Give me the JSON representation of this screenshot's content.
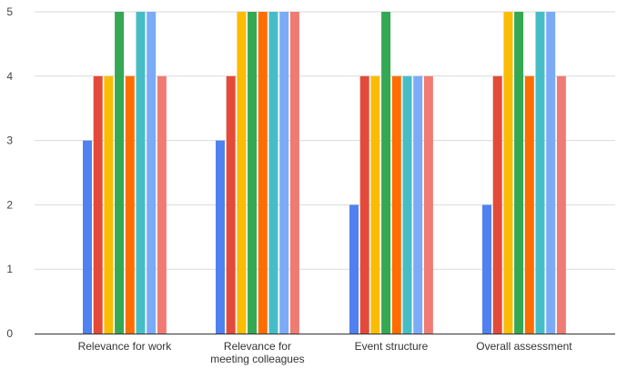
{
  "chart_data": {
    "type": "bar",
    "categories": [
      "Relevance for work",
      "Relevance for\nmeeting colleagues",
      "Event structure",
      "Overall assessment"
    ],
    "series": [
      {
        "color": "#4f81f0",
        "values": [
          3,
          3,
          2,
          2
        ]
      },
      {
        "color": "#e34a39",
        "values": [
          4,
          4,
          4,
          4
        ]
      },
      {
        "color": "#fbbc04",
        "values": [
          4,
          5,
          4,
          5
        ]
      },
      {
        "color": "#34a853",
        "values": [
          5,
          5,
          5,
          5
        ]
      },
      {
        "color": "#ff6d01",
        "values": [
          4,
          5,
          4,
          4
        ]
      },
      {
        "color": "#46bdc6",
        "values": [
          5,
          5,
          4,
          5
        ]
      },
      {
        "color": "#7baaf7",
        "values": [
          5,
          5,
          4,
          5
        ]
      },
      {
        "color": "#f07b72",
        "values": [
          4,
          5,
          4,
          4
        ]
      }
    ],
    "ylim": [
      0,
      5
    ],
    "yticks": [
      0,
      1,
      2,
      3,
      4,
      5
    ],
    "grid": true,
    "title": "",
    "xlabel": "",
    "ylabel": ""
  }
}
